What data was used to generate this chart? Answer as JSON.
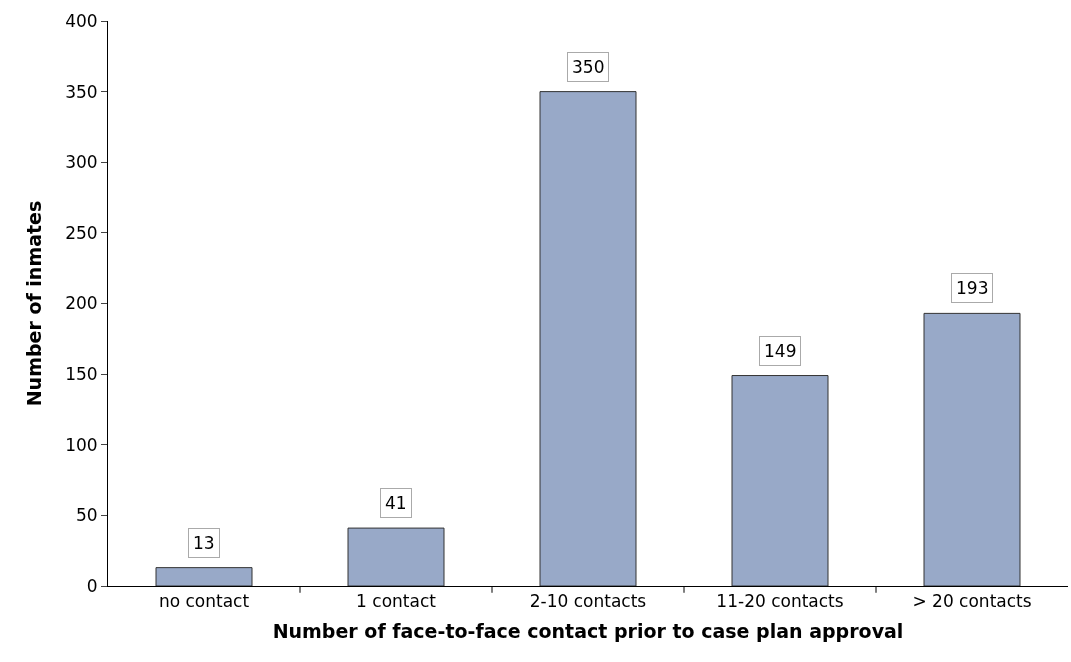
{
  "chart_data": {
    "type": "bar",
    "xlabel": "Number of face-to-face contact prior to case plan approval",
    "ylabel": "Number of inmates",
    "categories": [
      "no contact",
      "1 contact",
      "2-10 contacts",
      "11-20 contacts",
      "> 20 contacts"
    ],
    "values": [
      13,
      41,
      350,
      149,
      193
    ],
    "color": "#98a9c8",
    "ylim": [
      0,
      400
    ],
    "yticks": [
      0,
      50,
      100,
      150,
      200,
      250,
      300,
      350,
      400
    ],
    "grid": false,
    "data_labels": true,
    "legend": false
  }
}
